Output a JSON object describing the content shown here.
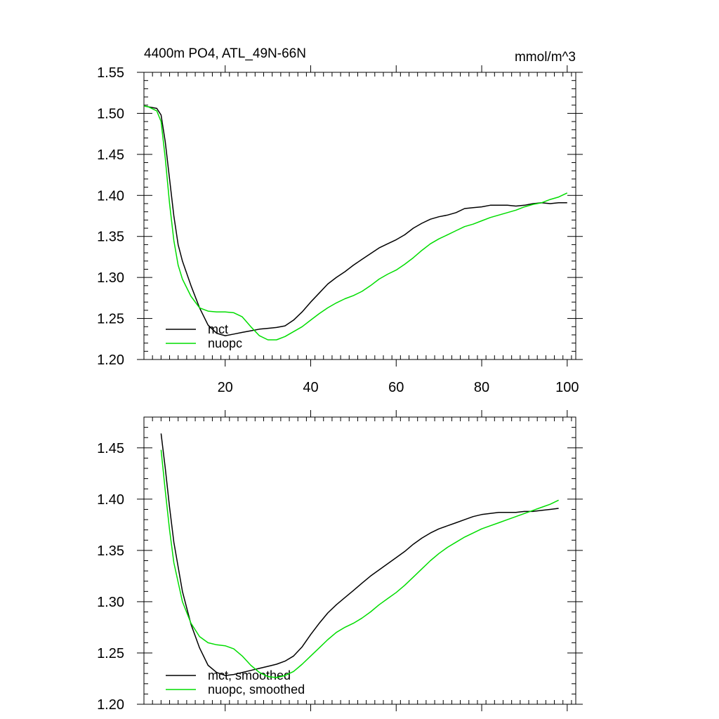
{
  "colors": {
    "mct": "#000000",
    "nuopc": "#00dd00"
  },
  "chart_data": [
    {
      "type": "line",
      "title": "4400m PO4, ATL_49N-66N",
      "units": "mmol/m^3",
      "xlim": [
        1,
        102
      ],
      "ylim": [
        1.2,
        1.55
      ],
      "xticks": [
        20,
        40,
        60,
        80,
        100
      ],
      "xtick_labels": [
        "20",
        "40",
        "60",
        "80",
        "100"
      ],
      "yticks": [
        1.2,
        1.25,
        1.3,
        1.35,
        1.4,
        1.45,
        1.5,
        1.55
      ],
      "ytick_labels": [
        "1.20",
        "1.25",
        "1.30",
        "1.35",
        "1.40",
        "1.45",
        "1.50",
        "1.55"
      ],
      "legend": "bottom-left",
      "series": [
        {
          "name": "mct",
          "color": "#000000",
          "x": [
            1,
            2,
            4,
            5,
            6,
            7,
            8,
            9,
            10,
            12,
            14,
            16,
            18,
            20,
            22,
            24,
            26,
            28,
            30,
            32,
            34,
            36,
            38,
            40,
            42,
            44,
            46,
            48,
            50,
            52,
            54,
            56,
            58,
            60,
            62,
            64,
            66,
            68,
            70,
            72,
            74,
            76,
            78,
            80,
            82,
            84,
            86,
            88,
            90,
            92,
            94,
            96,
            98,
            100
          ],
          "y": [
            1.509,
            1.508,
            1.506,
            1.498,
            1.465,
            1.42,
            1.375,
            1.34,
            1.32,
            1.29,
            1.263,
            1.242,
            1.232,
            1.229,
            1.231,
            1.233,
            1.235,
            1.237,
            1.238,
            1.239,
            1.241,
            1.248,
            1.258,
            1.27,
            1.281,
            1.292,
            1.3,
            1.307,
            1.315,
            1.322,
            1.329,
            1.336,
            1.341,
            1.346,
            1.352,
            1.36,
            1.366,
            1.371,
            1.374,
            1.376,
            1.379,
            1.384,
            1.385,
            1.386,
            1.388,
            1.388,
            1.388,
            1.387,
            1.388,
            1.39,
            1.391,
            1.39,
            1.391,
            1.391
          ]
        },
        {
          "name": "nuopc",
          "color": "#00dd00",
          "x": [
            1,
            2,
            4,
            5,
            6,
            7,
            8,
            9,
            10,
            12,
            14,
            16,
            18,
            20,
            22,
            24,
            26,
            28,
            30,
            32,
            34,
            36,
            38,
            40,
            42,
            44,
            46,
            48,
            50,
            52,
            54,
            56,
            58,
            60,
            62,
            64,
            66,
            68,
            70,
            72,
            74,
            76,
            78,
            80,
            82,
            84,
            86,
            88,
            90,
            92,
            94,
            96,
            98,
            100
          ],
          "y": [
            1.509,
            1.508,
            1.503,
            1.49,
            1.445,
            1.39,
            1.345,
            1.315,
            1.298,
            1.277,
            1.263,
            1.259,
            1.258,
            1.258,
            1.257,
            1.252,
            1.24,
            1.229,
            1.224,
            1.224,
            1.228,
            1.234,
            1.24,
            1.248,
            1.256,
            1.263,
            1.269,
            1.274,
            1.278,
            1.283,
            1.29,
            1.298,
            1.304,
            1.309,
            1.316,
            1.324,
            1.333,
            1.341,
            1.347,
            1.352,
            1.357,
            1.362,
            1.365,
            1.369,
            1.373,
            1.376,
            1.379,
            1.382,
            1.386,
            1.389,
            1.391,
            1.395,
            1.398,
            1.403
          ]
        }
      ]
    },
    {
      "type": "line",
      "title": "",
      "xlim": [
        1,
        102
      ],
      "ylim": [
        1.2,
        1.48
      ],
      "xticks": [
        20,
        40,
        60,
        80,
        100
      ],
      "yticks": [
        1.2,
        1.25,
        1.3,
        1.35,
        1.4,
        1.45
      ],
      "ytick_labels": [
        "1.20",
        "1.25",
        "1.30",
        "1.35",
        "1.40",
        "1.45"
      ],
      "legend": "bottom-left",
      "series": [
        {
          "name": "mct, smoothed",
          "color": "#000000",
          "x": [
            5,
            6,
            7,
            8,
            10,
            12,
            14,
            16,
            18,
            20,
            22,
            24,
            26,
            28,
            30,
            32,
            34,
            36,
            38,
            40,
            42,
            44,
            46,
            48,
            50,
            52,
            54,
            56,
            58,
            60,
            62,
            64,
            66,
            68,
            70,
            72,
            74,
            76,
            78,
            80,
            82,
            84,
            86,
            88,
            90,
            92,
            94,
            96,
            98
          ],
          "y": [
            1.464,
            1.43,
            1.392,
            1.358,
            1.31,
            1.278,
            1.255,
            1.238,
            1.231,
            1.228,
            1.229,
            1.231,
            1.233,
            1.235,
            1.237,
            1.239,
            1.242,
            1.247,
            1.256,
            1.268,
            1.279,
            1.289,
            1.297,
            1.304,
            1.311,
            1.318,
            1.325,
            1.331,
            1.337,
            1.343,
            1.349,
            1.356,
            1.362,
            1.367,
            1.371,
            1.374,
            1.377,
            1.38,
            1.383,
            1.385,
            1.386,
            1.387,
            1.387,
            1.387,
            1.388,
            1.388,
            1.389,
            1.39,
            1.391
          ]
        },
        {
          "name": "nuopc, smoothed",
          "color": "#00dd00",
          "x": [
            5,
            6,
            7,
            8,
            10,
            12,
            14,
            16,
            18,
            20,
            22,
            24,
            26,
            28,
            30,
            32,
            34,
            36,
            38,
            40,
            42,
            44,
            46,
            48,
            50,
            52,
            54,
            56,
            58,
            60,
            62,
            64,
            66,
            68,
            70,
            72,
            74,
            76,
            78,
            80,
            82,
            84,
            86,
            88,
            90,
            92,
            94,
            96,
            98
          ],
          "y": [
            1.448,
            1.408,
            1.37,
            1.338,
            1.3,
            1.279,
            1.266,
            1.26,
            1.258,
            1.257,
            1.254,
            1.247,
            1.238,
            1.231,
            1.227,
            1.226,
            1.228,
            1.232,
            1.239,
            1.247,
            1.255,
            1.263,
            1.27,
            1.275,
            1.279,
            1.284,
            1.29,
            1.297,
            1.303,
            1.309,
            1.316,
            1.324,
            1.332,
            1.34,
            1.347,
            1.353,
            1.358,
            1.363,
            1.367,
            1.371,
            1.374,
            1.377,
            1.38,
            1.383,
            1.386,
            1.389,
            1.392,
            1.395,
            1.399
          ]
        }
      ]
    }
  ]
}
